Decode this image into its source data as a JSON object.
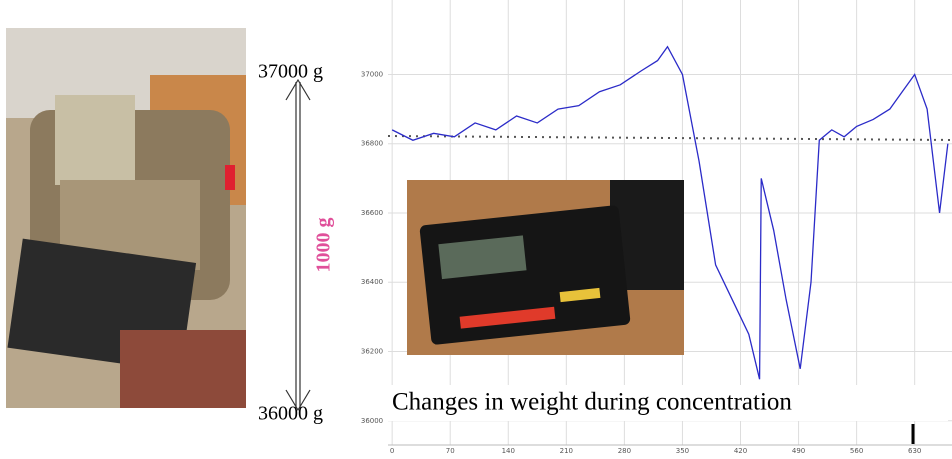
{
  "chart_data": {
    "type": "line",
    "top_label": "37000 g",
    "bottom_label": "36000 g",
    "span_label": "1000 g",
    "caption": "Changes in weight during concentration",
    "x": [
      0,
      25,
      50,
      75,
      100,
      125,
      150,
      175,
      200,
      225,
      250,
      275,
      300,
      320,
      332,
      350,
      370,
      390,
      410,
      430,
      443,
      445,
      460,
      475,
      492,
      505,
      515,
      530,
      545,
      560,
      580,
      600,
      615,
      630,
      645,
      660,
      670
    ],
    "series": [
      {
        "name": null,
        "color": "#2b2bc8",
        "values": [
          36840,
          36810,
          36830,
          36820,
          36860,
          36840,
          36880,
          36860,
          36900,
          36910,
          36950,
          36970,
          37010,
          37040,
          37080,
          37000,
          36750,
          36450,
          36350,
          36250,
          36120,
          36700,
          36550,
          36350,
          36150,
          36400,
          36810,
          36840,
          36820,
          36850,
          36870,
          36900,
          36950,
          37000,
          36900,
          36600,
          36800
        ]
      }
    ],
    "xlim": [
      -5,
      675
    ],
    "ylim": [
      35930,
      37215
    ],
    "xticks": [
      0,
      70,
      140,
      210,
      280,
      350,
      420,
      490,
      560,
      630
    ],
    "yticks": [
      36000,
      36200,
      36400,
      36600,
      36800,
      37000
    ],
    "grid": true
  }
}
